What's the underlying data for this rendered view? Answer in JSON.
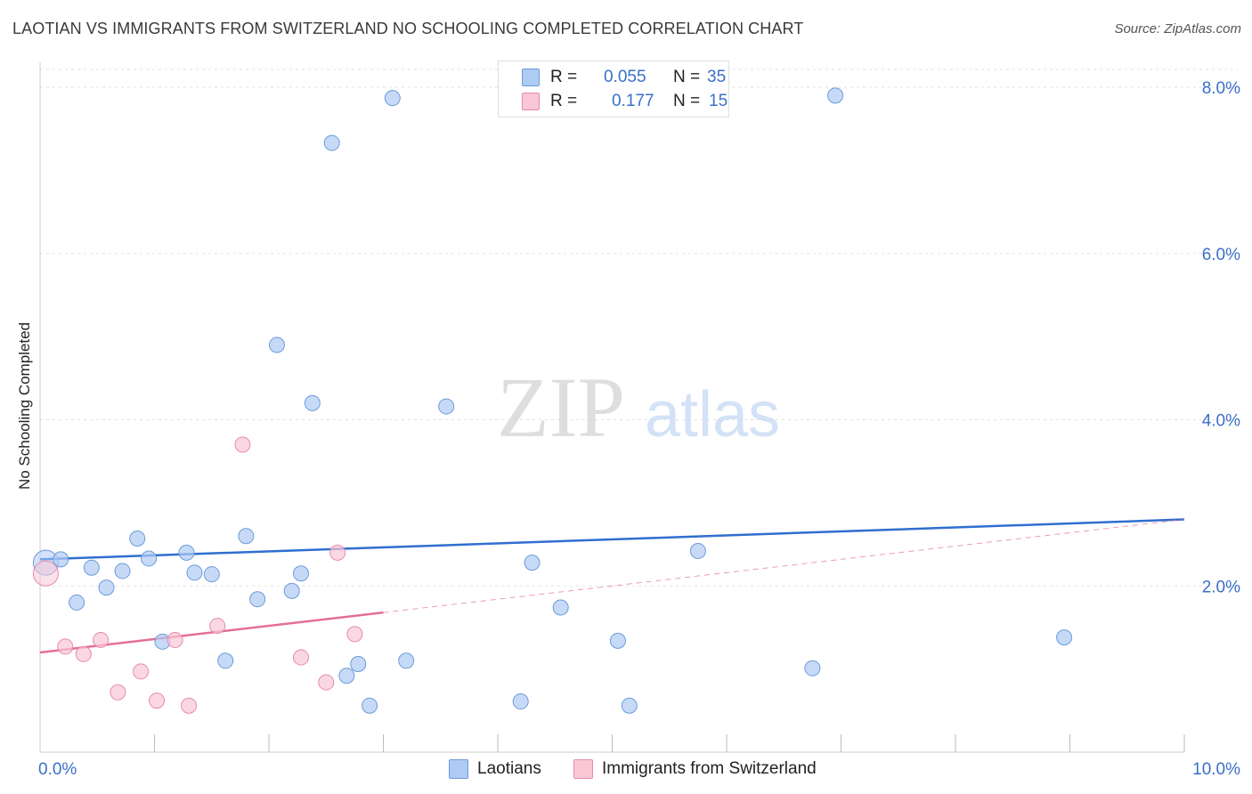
{
  "header": {
    "title": "LAOTIAN VS IMMIGRANTS FROM SWITZERLAND NO SCHOOLING COMPLETED CORRELATION CHART",
    "source": "Source: ZipAtlas.com"
  },
  "watermark": {
    "zip": "ZIP",
    "atlas": "atlas"
  },
  "legend": {
    "rows": [
      {
        "r_label": "R =",
        "r_value": "0.055",
        "n_label": "N =",
        "n_value": "35",
        "color": "#aecbf5",
        "border": "#6c9bd8"
      },
      {
        "r_label": "R =",
        "r_value": "0.177",
        "n_label": "N =",
        "n_value": "15",
        "color": "#f9c6d5",
        "border": "#e88aa8"
      }
    ]
  },
  "chart_data": {
    "type": "scatter",
    "title": "LAOTIAN VS IMMIGRANTS FROM SWITZERLAND NO SCHOOLING COMPLETED CORRELATION CHART",
    "xlabel": "",
    "ylabel": "No Schooling Completed",
    "xlim": [
      0,
      10
    ],
    "ylim": [
      0,
      8.3
    ],
    "x_tick_labels": [
      "0.0%",
      "10.0%"
    ],
    "y_ticks": [
      2,
      4,
      6,
      8
    ],
    "y_tick_labels": [
      "2.0%",
      "4.0%",
      "6.0%",
      "8.0%"
    ],
    "grid": true,
    "legend_position": "bottom",
    "series": [
      {
        "name": "Laotians",
        "color": "#aecbf5",
        "edge": "#6c9bd8",
        "line_color": "#2f6fcf",
        "trend": {
          "x": [
            0,
            10
          ],
          "y": [
            2.32,
            2.8
          ]
        },
        "points": [
          [
            0.05,
            2.28
          ],
          [
            0.18,
            2.32
          ],
          [
            0.32,
            1.8
          ],
          [
            0.45,
            2.22
          ],
          [
            0.58,
            1.98
          ],
          [
            0.72,
            2.18
          ],
          [
            0.85,
            2.57
          ],
          [
            0.95,
            2.33
          ],
          [
            1.07,
            1.33
          ],
          [
            1.28,
            2.4
          ],
          [
            1.35,
            2.16
          ],
          [
            1.5,
            2.14
          ],
          [
            1.62,
            1.1
          ],
          [
            1.8,
            2.6
          ],
          [
            1.9,
            1.84
          ],
          [
            2.07,
            4.9
          ],
          [
            2.2,
            1.94
          ],
          [
            2.28,
            2.15
          ],
          [
            2.38,
            4.2
          ],
          [
            2.55,
            7.33
          ],
          [
            2.68,
            0.92
          ],
          [
            2.78,
            1.06
          ],
          [
            2.88,
            0.56
          ],
          [
            3.08,
            7.87
          ],
          [
            3.2,
            1.1
          ],
          [
            3.55,
            4.16
          ],
          [
            4.2,
            0.61
          ],
          [
            4.3,
            2.28
          ],
          [
            4.55,
            1.74
          ],
          [
            5.05,
            1.34
          ],
          [
            5.15,
            0.56
          ],
          [
            5.75,
            2.42
          ],
          [
            6.75,
            1.01
          ],
          [
            6.95,
            7.9
          ],
          [
            8.95,
            1.38
          ]
        ]
      },
      {
        "name": "Immigrants from Switzerland",
        "color": "#f9c6d5",
        "edge": "#e88aa8",
        "line_color": "#e46f96",
        "trend": {
          "x": [
            0,
            10
          ],
          "y": [
            1.2,
            2.8
          ]
        },
        "trend_solid_until": 3.0,
        "points": [
          [
            0.05,
            2.15
          ],
          [
            0.22,
            1.27
          ],
          [
            0.38,
            1.18
          ],
          [
            0.53,
            1.35
          ],
          [
            0.68,
            0.72
          ],
          [
            0.88,
            0.97
          ],
          [
            1.02,
            0.62
          ],
          [
            1.18,
            1.35
          ],
          [
            1.3,
            0.56
          ],
          [
            1.55,
            1.52
          ],
          [
            1.77,
            3.7
          ],
          [
            2.28,
            1.14
          ],
          [
            2.5,
            0.84
          ],
          [
            2.6,
            2.4
          ],
          [
            2.75,
            1.42
          ]
        ]
      }
    ]
  }
}
